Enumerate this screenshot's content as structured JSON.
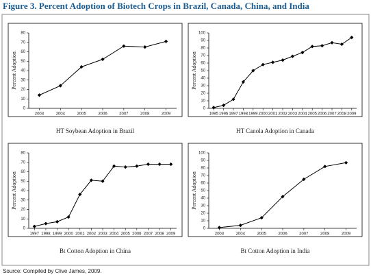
{
  "title": "Figure 3. Percent Adoption of Biotech Crops in Brazil, Canada, China, and India",
  "source": "Source: Compiled by Clive James, 2009.",
  "chart_data": [
    {
      "type": "line",
      "title": "HT Soybean Adoption in Brazil",
      "y_label": "Percent Adoption",
      "categories": [
        "2003",
        "2004",
        "2005",
        "2006",
        "2007",
        "2008",
        "2009"
      ],
      "values": [
        14,
        24,
        44,
        52,
        66,
        65,
        71
      ],
      "color": "#000000",
      "ylim": [
        0,
        80
      ],
      "yticks": [
        0,
        10,
        20,
        30,
        40,
        50,
        60,
        70,
        80
      ]
    },
    {
      "type": "line",
      "title": "HT Canola Adoption in Canada",
      "y_label": "Percent Adoption",
      "categories": [
        "1995",
        "1996",
        "1997",
        "1998",
        "1999",
        "2000",
        "2001",
        "2002",
        "2003",
        "2004",
        "2005",
        "2006",
        "2007",
        "2008",
        "2009"
      ],
      "values": [
        1,
        4,
        12,
        35,
        50,
        58,
        61,
        64,
        69,
        74,
        82,
        83,
        87,
        85,
        94
      ],
      "color": "#000000",
      "ylim": [
        0,
        100
      ],
      "yticks": [
        0,
        10,
        20,
        30,
        40,
        50,
        60,
        70,
        80,
        90,
        100
      ]
    },
    {
      "type": "line",
      "title": "Bt Cotton Adoption in China",
      "y_label": "Percent Adoption",
      "categories": [
        "1997",
        "1998",
        "1999",
        "2000",
        "2001",
        "2002",
        "2003",
        "2004",
        "2005",
        "2006",
        "2007",
        "2008",
        "2009"
      ],
      "values": [
        2,
        5,
        7,
        12,
        36,
        51,
        50,
        66,
        65,
        66,
        68,
        68,
        68
      ],
      "color": "#000000",
      "ylim": [
        0,
        80
      ],
      "yticks": [
        0,
        10,
        20,
        30,
        40,
        50,
        60,
        70,
        80
      ]
    },
    {
      "type": "line",
      "title": "Bt Cotton Adoption in India",
      "y_label": "Percent Adoption",
      "categories": [
        "2003",
        "2004",
        "2005",
        "2006",
        "2007",
        "2008",
        "2009"
      ],
      "values": [
        1,
        4,
        14,
        42,
        65,
        82,
        87
      ],
      "color": "#000000",
      "ylim": [
        0,
        100
      ],
      "yticks": [
        0,
        10,
        20,
        30,
        40,
        50,
        60,
        70,
        80,
        90,
        100
      ]
    }
  ]
}
